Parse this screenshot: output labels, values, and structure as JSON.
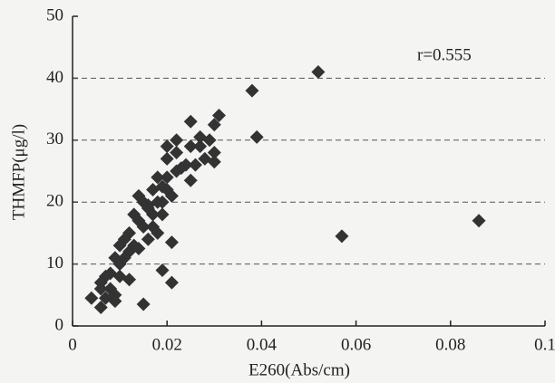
{
  "chart_data": {
    "type": "scatter",
    "x_label": "E260(Abs/cm)",
    "y_label": "THMFP(μg/l)",
    "annotation": "r=0.555",
    "color": "#333333",
    "grid": true,
    "xlim": [
      0,
      0.1
    ],
    "xticks": [
      0,
      0.02,
      0.04,
      0.06,
      0.08,
      0.1
    ],
    "ylim": [
      0,
      50
    ],
    "yticks": [
      0,
      10,
      20,
      30,
      40,
      50
    ],
    "x": [
      0.052,
      0.038,
      0.039,
      0.086,
      0.057,
      0.031,
      0.03,
      0.025,
      0.027,
      0.025,
      0.028,
      0.03,
      0.03,
      0.026,
      0.025,
      0.022,
      0.02,
      0.02,
      0.022,
      0.02,
      0.018,
      0.017,
      0.019,
      0.021,
      0.018,
      0.016,
      0.017,
      0.014,
      0.015,
      0.013,
      0.014,
      0.015,
      0.012,
      0.011,
      0.013,
      0.01,
      0.012,
      0.014,
      0.016,
      0.017,
      0.019,
      0.021,
      0.019,
      0.021,
      0.015,
      0.012,
      0.01,
      0.009,
      0.008,
      0.007,
      0.006,
      0.006,
      0.008,
      0.009,
      0.007,
      0.004,
      0.006,
      0.009,
      0.011,
      0.01,
      0.018,
      0.016,
      0.019,
      0.02,
      0.023,
      0.022,
      0.024,
      0.029,
      0.027
    ],
    "values": [
      41,
      38,
      30.5,
      17,
      14.5,
      34,
      32.5,
      33,
      30.5,
      29,
      27,
      28,
      26.5,
      26,
      23.5,
      28,
      29,
      27,
      25,
      24,
      24,
      22,
      22.5,
      21,
      20,
      19,
      18,
      21,
      20,
      18,
      17,
      16,
      15,
      14,
      13,
      13,
      12,
      12.5,
      14,
      16,
      18,
      13.5,
      9,
      7,
      3.5,
      7.5,
      10,
      11,
      8.5,
      8,
      7,
      6,
      6,
      5,
      4.5,
      4.5,
      3,
      4,
      11,
      8,
      15,
      19.5,
      20,
      22,
      25.5,
      30,
      26,
      30,
      29
    ]
  }
}
